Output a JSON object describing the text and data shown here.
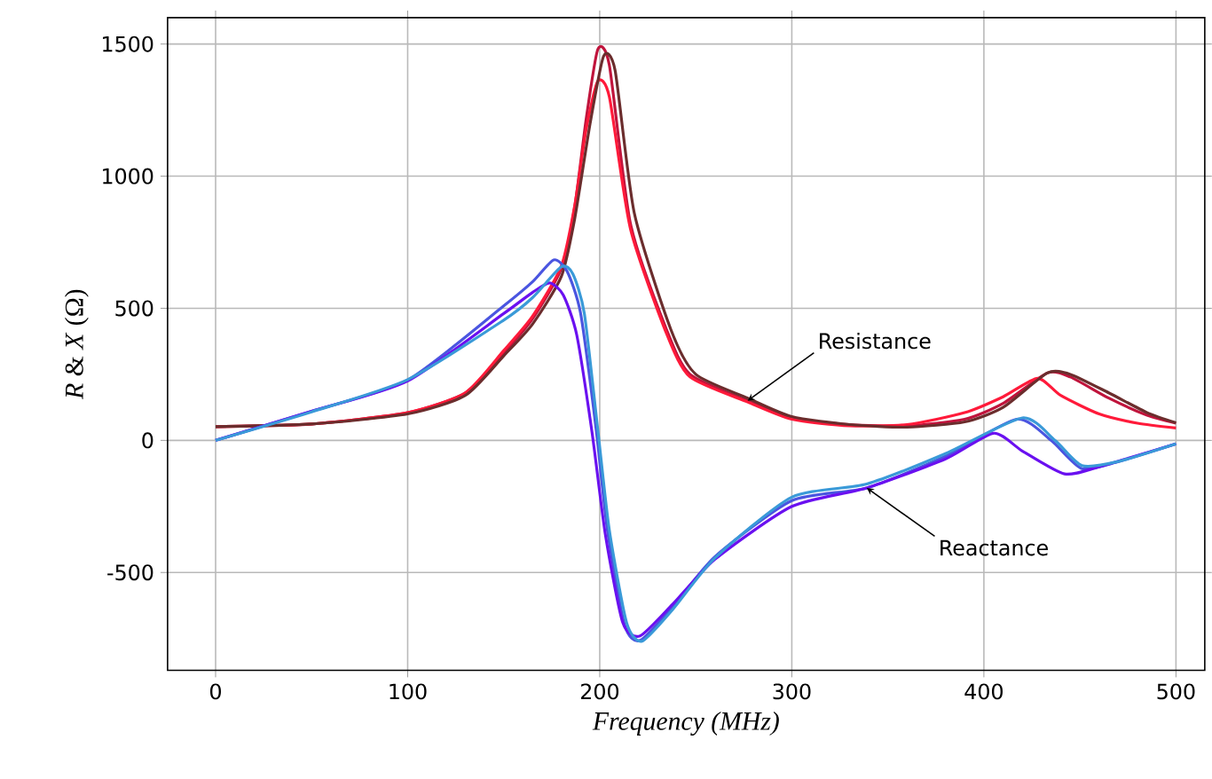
{
  "chart_data": {
    "type": "line",
    "xlabel": "Frequency (MHz)",
    "ylabel": "*R* & *X* (Ω)",
    "xlim": [
      -25,
      515
    ],
    "ylim": [
      -870,
      1600
    ],
    "xticks": [
      0,
      100,
      200,
      300,
      400,
      500
    ],
    "yticks": [
      -500,
      0,
      500,
      1000,
      1500
    ],
    "grid": true,
    "line_style": "solid",
    "marker": "none",
    "series": [
      {
        "color": "#c0143c",
        "x": [
          0,
          50,
          100,
          130,
          150,
          165,
          180,
          187,
          193,
          199,
          205,
          216,
          235,
          247,
          277,
          300,
          330,
          360,
          390,
          410,
          433,
          445,
          465,
          485,
          500
        ],
        "values": [
          52,
          62,
          105,
          180,
          330,
          460,
          650,
          884,
          1220,
          1480,
          1420,
          820,
          415,
          250,
          150,
          85,
          60,
          55,
          80,
          140,
          255,
          240,
          160,
          95,
          65
        ]
      },
      {
        "color": "#ff1a3a",
        "x": [
          0,
          50,
          100,
          130,
          150,
          165,
          180,
          187,
          193,
          199,
          205,
          216,
          235,
          247,
          277,
          300,
          330,
          360,
          390,
          410,
          428,
          440,
          460,
          480,
          500
        ],
        "values": [
          52,
          62,
          105,
          180,
          340,
          470,
          660,
          890,
          1180,
          1360,
          1300,
          800,
          400,
          240,
          145,
          80,
          55,
          60,
          105,
          165,
          235,
          170,
          100,
          65,
          47
        ]
      },
      {
        "color": "#6b2d2d",
        "x": [
          0,
          50,
          100,
          130,
          150,
          165,
          180,
          187,
          195,
          202,
          208,
          218,
          237,
          250,
          277,
          300,
          330,
          360,
          390,
          410,
          433,
          445,
          465,
          485,
          500
        ],
        "values": [
          52,
          62,
          100,
          170,
          320,
          440,
          620,
          840,
          1200,
          1454,
          1400,
          860,
          420,
          250,
          160,
          90,
          60,
          50,
          70,
          125,
          255,
          250,
          180,
          105,
          67
        ]
      },
      {
        "color": "#4a55e0",
        "x": [
          0,
          50,
          100,
          150,
          165,
          176,
          183,
          190,
          198,
          204,
          213,
          221,
          238,
          260,
          300,
          339,
          380,
          417,
          435,
          451,
          470,
          500
        ],
        "values": [
          0,
          110,
          228,
          509,
          600,
          683,
          640,
          482,
          50,
          -340,
          -700,
          -757,
          -630,
          -440,
          -228,
          -180,
          -60,
          80,
          0,
          -107,
          -80,
          -13
        ]
      },
      {
        "color": "#6a10f0",
        "x": [
          0,
          50,
          100,
          150,
          165,
          174,
          181,
          188,
          196,
          203,
          212,
          221,
          238,
          260,
          300,
          339,
          380,
          405,
          420,
          442,
          460,
          500
        ],
        "values": [
          0,
          110,
          225,
          480,
          560,
          596,
          550,
          400,
          30,
          -360,
          -690,
          -740,
          -620,
          -450,
          -250,
          -180,
          -70,
          27,
          -40,
          -127,
          -100,
          -13
        ]
      },
      {
        "color": "#3a9ad8",
        "x": [
          0,
          50,
          100,
          150,
          165,
          180,
          186,
          192,
          199,
          205,
          214,
          222,
          238,
          260,
          300,
          339,
          380,
          420,
          437,
          451,
          470,
          500
        ],
        "values": [
          0,
          108,
          230,
          455,
          540,
          657,
          630,
          480,
          40,
          -340,
          -690,
          -760,
          -640,
          -445,
          -215,
          -165,
          -50,
          85,
          0,
          -95,
          -80,
          -13
        ]
      }
    ],
    "annotations": [
      {
        "text": "Resistance",
        "x": 277,
        "y": 150
      },
      {
        "text": "Reactance",
        "x": 339,
        "y": -180
      }
    ]
  }
}
